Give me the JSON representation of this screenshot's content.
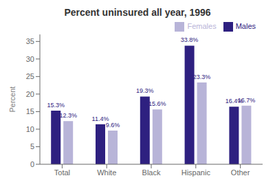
{
  "chart_data": {
    "type": "bar",
    "title": "Percent uninsured all year, 1996",
    "categories": [
      "Total",
      "White",
      "Black",
      "Hispanic",
      "Other"
    ],
    "series": [
      {
        "name": "Males",
        "color": "#2e2080",
        "values": [
          15.3,
          11.4,
          19.3,
          33.8,
          16.4
        ],
        "value_labels": [
          "15.3%",
          "11.4%",
          "19.3%",
          "33.8%",
          "16.4%"
        ]
      },
      {
        "name": "Females",
        "color": "#b8b4d8",
        "values": [
          12.3,
          9.6,
          15.6,
          23.3,
          16.7
        ],
        "value_labels": [
          "12.3%",
          "9.6%",
          "15.6%",
          "23.3%",
          "16.7%"
        ]
      }
    ],
    "ylabel": "Percent",
    "ylim": [
      0,
      37
    ],
    "yticks": [
      0,
      5,
      10,
      15,
      20,
      25,
      30,
      35
    ],
    "grid": false,
    "legend": "upper right",
    "data_labels": true
  }
}
